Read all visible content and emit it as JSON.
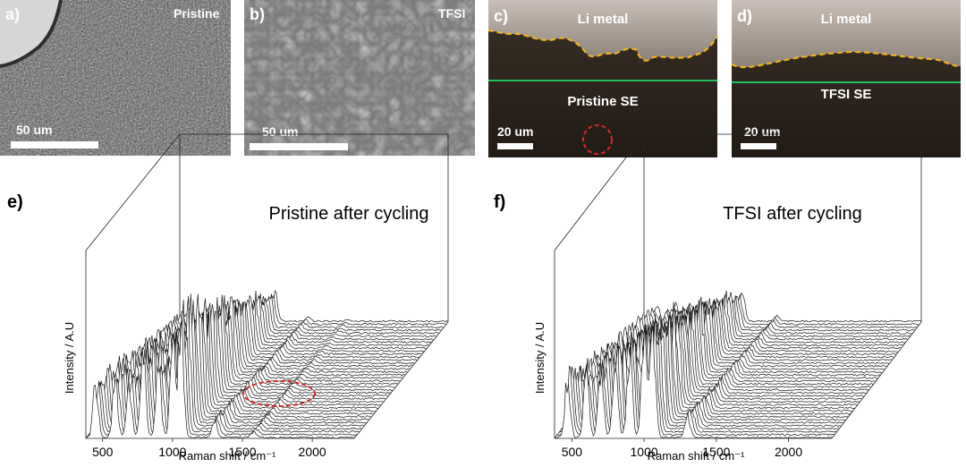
{
  "panels": {
    "a": {
      "letter": "a)",
      "tag": "Pristine",
      "scale": "50 um"
    },
    "b": {
      "letter": "b)",
      "tag": "TFSI",
      "scale": "50 um"
    },
    "c": {
      "letter": "c)",
      "top_label": "Li metal",
      "bottom_label": "Pristine SE",
      "scale": "20 um"
    },
    "d": {
      "letter": "d)",
      "top_label": "Li metal",
      "bottom_label": "TFSI SE",
      "scale": "20 um"
    },
    "e": {
      "letter": "e)",
      "title": "Pristine after cycling"
    },
    "f": {
      "letter": "f)",
      "title": "TFSI after cycling"
    }
  },
  "colors": {
    "interface_dash": "#f2b01e",
    "se_boundary": "#1fbf5a",
    "highlight_circle": "#d42a2a"
  },
  "chart_data": [
    {
      "type": "line",
      "title": "Pristine after cycling",
      "xlabel": "Raman shift / cm⁻¹",
      "ylabel": "Intensity / A.U",
      "xticks": [
        500,
        1000,
        1500,
        2000
      ],
      "xlim": [
        380,
        2300
      ],
      "n_spectra": 40,
      "peaks": [
        {
          "x": 450,
          "height": 0.45
        },
        {
          "x": 590,
          "height": 0.5
        },
        {
          "x": 690,
          "height": 0.45
        },
        {
          "x": 790,
          "height": 0.7
        },
        {
          "x": 900,
          "height": 0.65
        },
        {
          "x": 1000,
          "height": 0.8
        },
        {
          "x": 1060,
          "height": 1.0
        },
        {
          "x": 1300,
          "height": 0.15
        },
        {
          "x": 1580,
          "height": 0.05
        }
      ]
    },
    {
      "type": "line",
      "title": "TFSI after cycling",
      "xlabel": "Raman shift / cm⁻¹",
      "ylabel": "Intensity / A.U",
      "xticks": [
        500,
        1000,
        1500,
        2000
      ],
      "xlim": [
        380,
        2300
      ],
      "n_spectra": 40,
      "peaks": [
        {
          "x": 470,
          "height": 0.55
        },
        {
          "x": 600,
          "height": 0.55
        },
        {
          "x": 700,
          "height": 0.65
        },
        {
          "x": 800,
          "height": 0.75
        },
        {
          "x": 900,
          "height": 0.8
        },
        {
          "x": 1000,
          "height": 0.9
        },
        {
          "x": 1060,
          "height": 1.0
        },
        {
          "x": 1300,
          "height": 0.2
        }
      ]
    }
  ]
}
